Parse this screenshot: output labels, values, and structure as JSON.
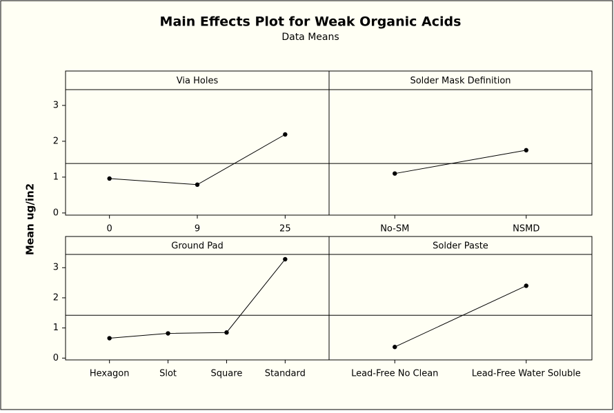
{
  "header": {
    "title": "Main Effects Plot for Weak Organic Acids",
    "subtitle": "Data Means",
    "ylabel": "Mean ug/in2"
  },
  "chart_data": [
    {
      "type": "line",
      "title": "Via Holes",
      "categories": [
        "0",
        "9",
        "25"
      ],
      "values": [
        0.96,
        0.79,
        2.19
      ],
      "mean": 1.38,
      "color": "#000000",
      "ylim": [
        -0.06,
        3.44
      ],
      "yticks": [
        0,
        1,
        2,
        3
      ]
    },
    {
      "type": "line",
      "title": "Solder Mask Definition",
      "categories": [
        "No-SM",
        "NSMD"
      ],
      "values": [
        1.1,
        1.75
      ],
      "mean": 1.38,
      "color": "#000000",
      "ylim": [
        -0.06,
        3.44
      ],
      "yticks": [
        0,
        1,
        2,
        3
      ]
    },
    {
      "type": "line",
      "title": "Ground Pad",
      "categories": [
        "Hexagon",
        "Slot",
        "Square",
        "Standard"
      ],
      "values": [
        0.66,
        0.82,
        0.85,
        3.28
      ],
      "mean": 1.42,
      "color": "#000000",
      "ylim": [
        -0.06,
        3.44
      ],
      "yticks": [
        0,
        1,
        2,
        3
      ]
    },
    {
      "type": "line",
      "title": "Solder Paste",
      "categories": [
        "Lead-Free No Clean",
        "Lead-Free Water Soluble"
      ],
      "values": [
        0.37,
        2.4
      ],
      "mean": 1.42,
      "color": "#000000",
      "ylim": [
        -0.06,
        3.44
      ],
      "yticks": [
        0,
        1,
        2,
        3
      ]
    }
  ]
}
